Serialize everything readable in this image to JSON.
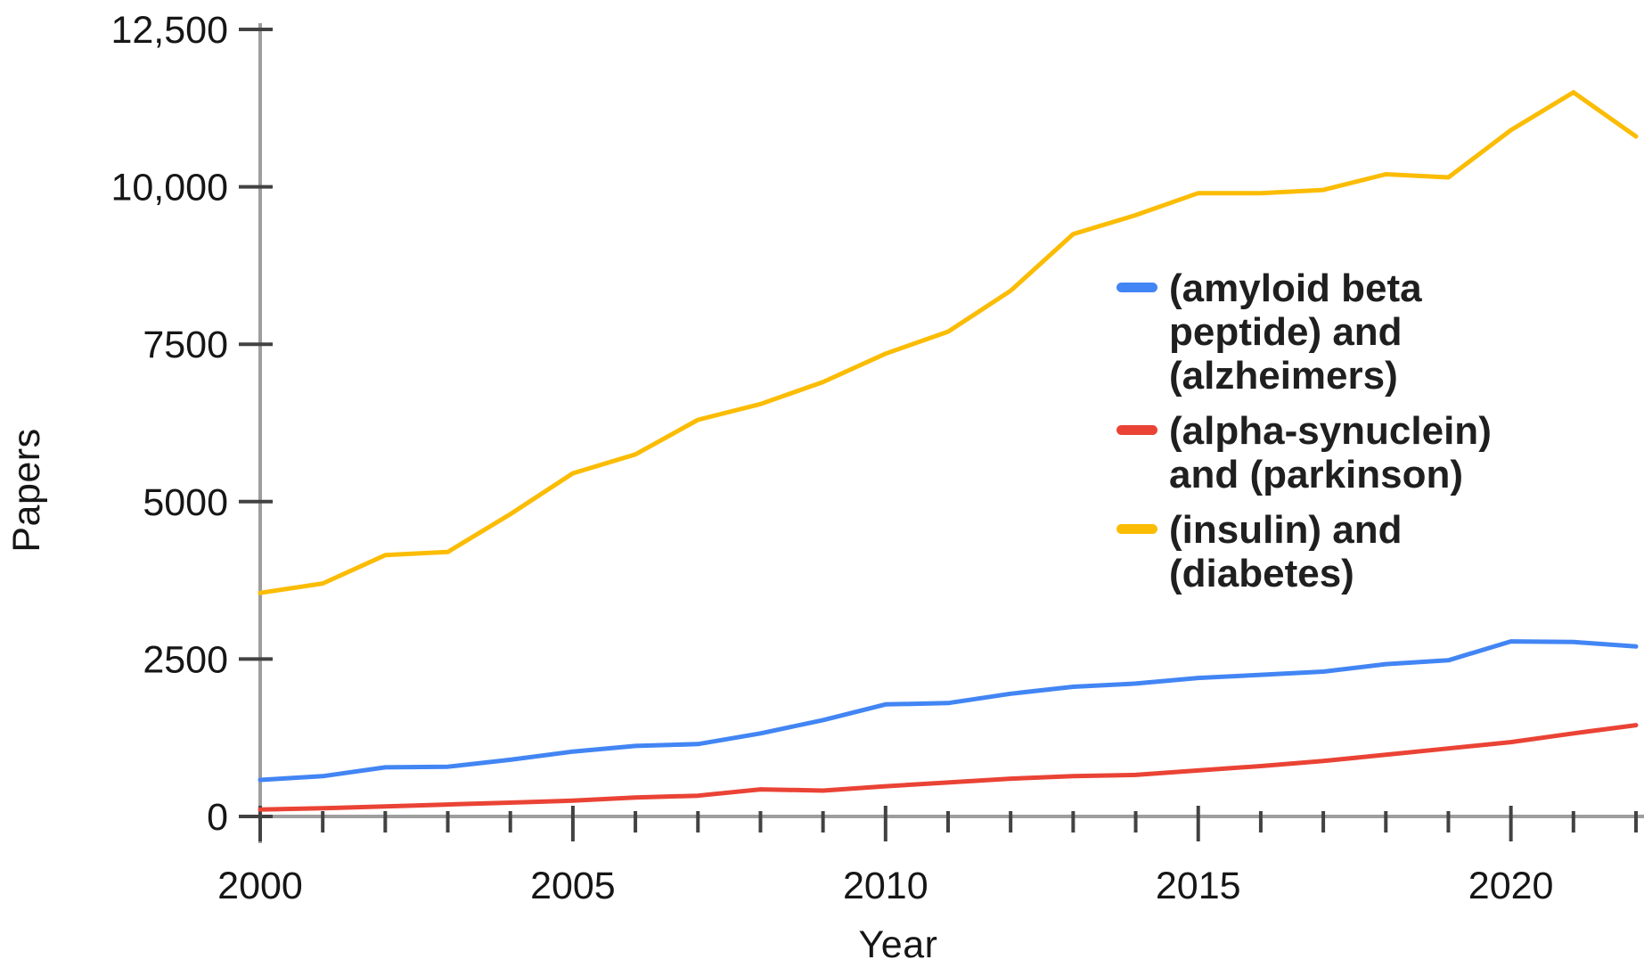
{
  "chart_data": {
    "type": "line",
    "title": "",
    "xlabel": "Year",
    "ylabel": "Papers",
    "xlim": [
      2000,
      2022
    ],
    "ylim": [
      0,
      12500
    ],
    "grid": false,
    "legend_position": "inside-right",
    "x": [
      2000,
      2001,
      2002,
      2003,
      2004,
      2005,
      2006,
      2007,
      2008,
      2009,
      2010,
      2011,
      2012,
      2013,
      2014,
      2015,
      2016,
      2017,
      2018,
      2019,
      2020,
      2021,
      2022
    ],
    "x_tick_labels": [
      {
        "value": 2000,
        "label": "2000"
      },
      {
        "value": 2005,
        "label": "2005"
      },
      {
        "value": 2010,
        "label": "2010"
      },
      {
        "value": 2015,
        "label": "2015"
      },
      {
        "value": 2020,
        "label": "2020"
      }
    ],
    "y_ticks": [
      {
        "value": 0,
        "label": "0"
      },
      {
        "value": 2500,
        "label": "2500"
      },
      {
        "value": 5000,
        "label": "5000"
      },
      {
        "value": 7500,
        "label": "7500"
      },
      {
        "value": 10000,
        "label": "10,000"
      },
      {
        "value": 12500,
        "label": "12,500"
      }
    ],
    "series": [
      {
        "name": "(amyloid beta peptide) and (alzheimers)",
        "legend_label": "(amyloid beta\npeptide) and\n(alzheimers)",
        "color": "#4285F4",
        "values": [
          580,
          640,
          780,
          790,
          900,
          1030,
          1120,
          1150,
          1320,
          1530,
          1780,
          1800,
          1950,
          2060,
          2110,
          2200,
          2250,
          2300,
          2420,
          2480,
          2780,
          2770,
          2700
        ]
      },
      {
        "name": "(alpha-synuclein) and (parkinson)",
        "legend_label": "(alpha-synuclein)\nand (parkinson)",
        "color": "#EA4335",
        "values": [
          110,
          130,
          160,
          190,
          220,
          250,
          300,
          330,
          430,
          410,
          480,
          540,
          600,
          640,
          660,
          730,
          800,
          880,
          980,
          1080,
          1180,
          1320,
          1450
        ]
      },
      {
        "name": "(insulin) and (diabetes)",
        "legend_label": "(insulin) and\n(diabetes)",
        "color": "#FBBC04",
        "values": [
          3550,
          3700,
          4150,
          4200,
          4800,
          5450,
          5750,
          6300,
          6550,
          6900,
          7350,
          7700,
          8350,
          9250,
          9550,
          9900,
          9900,
          9950,
          10200,
          10150,
          10900,
          11500,
          10800
        ]
      }
    ],
    "style": {
      "axis_line_color": "#9E9E9E",
      "tick_color": "#424242",
      "tick_label_color": "#161616",
      "series_stroke_width": 5
    }
  }
}
